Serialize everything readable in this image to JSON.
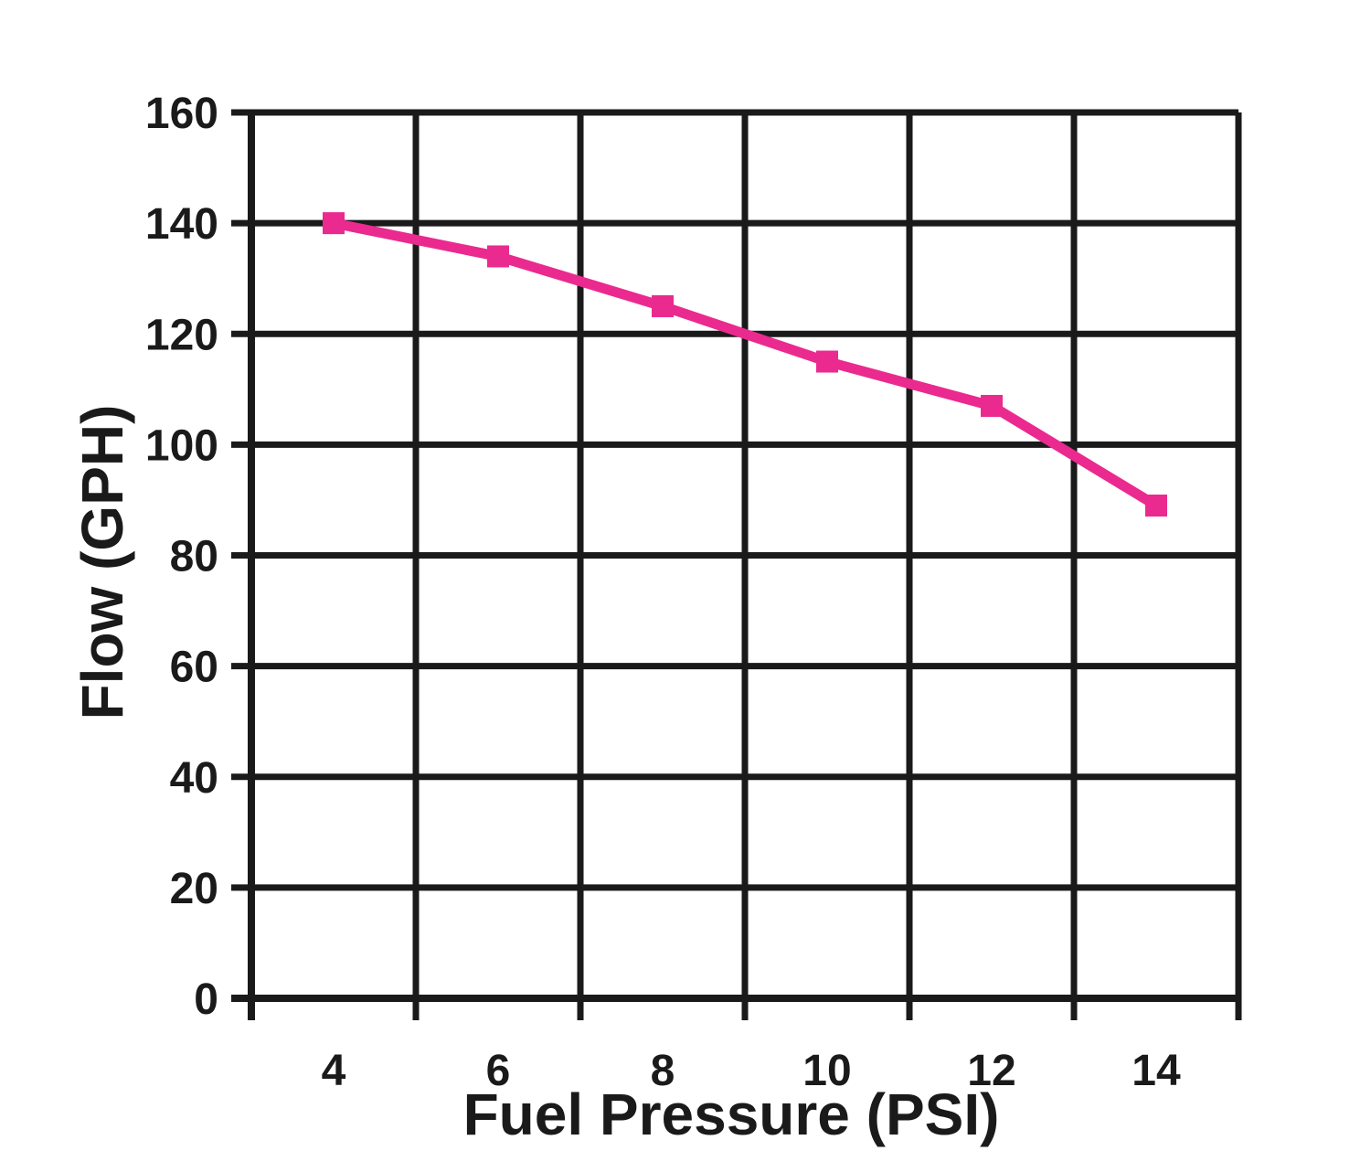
{
  "chart_data": {
    "type": "line",
    "title": "",
    "xlabel": "Fuel Pressure (PSI)",
    "ylabel": "Flow (GPH)",
    "x": [
      4,
      6,
      8,
      10,
      12,
      14
    ],
    "series": [
      {
        "name": "Flow",
        "values": [
          140,
          134,
          125,
          115,
          107,
          89
        ]
      }
    ],
    "ylim": [
      0,
      160
    ],
    "yticks": [
      160,
      140,
      120,
      100,
      80,
      60,
      40,
      20,
      0
    ],
    "grid": true,
    "legend": false,
    "marker": "square",
    "colors": {
      "line": "#ea2a8f",
      "grid": "#1a1a1a",
      "text": "#1a1a1a",
      "background": "#ffffff"
    }
  }
}
